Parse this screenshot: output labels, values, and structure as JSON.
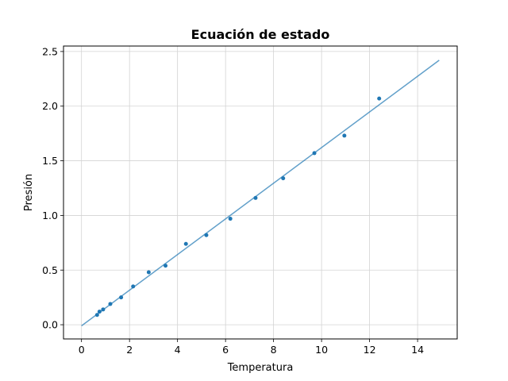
{
  "chart_data": {
    "type": "scatter",
    "title": "Ecuación de estado",
    "xlabel": "Temperatura",
    "ylabel": "Presión",
    "xlim": [
      -0.75,
      15.65
    ],
    "ylim": [
      -0.13,
      2.55
    ],
    "xticks": [
      0,
      2,
      4,
      6,
      8,
      10,
      12,
      14
    ],
    "xtick_labels": [
      "0",
      "2",
      "4",
      "6",
      "8",
      "10",
      "12",
      "14"
    ],
    "yticks": [
      0.0,
      0.5,
      1.0,
      1.5,
      2.0,
      2.5
    ],
    "ytick_labels": [
      "0.0",
      "0.5",
      "1.0",
      "1.5",
      "2.0",
      "2.5"
    ],
    "grid": true,
    "colors": {
      "points": "#1f77b4",
      "line": "#1f77b4",
      "grid": "#d3d3d3"
    },
    "series": [
      {
        "kind": "scatter",
        "x": [
          0.65,
          0.75,
          0.9,
          1.2,
          1.65,
          2.15,
          2.8,
          3.5,
          4.35,
          5.2,
          6.2,
          7.25,
          8.4,
          9.7,
          10.95,
          12.4
        ],
        "y": [
          0.09,
          0.12,
          0.14,
          0.19,
          0.25,
          0.35,
          0.48,
          0.54,
          0.74,
          0.82,
          0.97,
          1.16,
          1.34,
          1.57,
          1.73,
          2.07
        ]
      },
      {
        "kind": "line",
        "x": [
          0,
          14.9
        ],
        "y": [
          -0.01,
          2.42
        ]
      }
    ]
  }
}
